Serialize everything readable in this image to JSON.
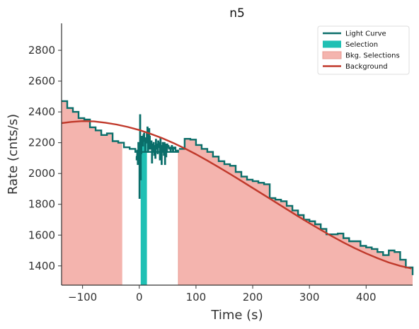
{
  "chart_data": {
    "type": "line",
    "title": "n5",
    "xlabel": "Time (s)",
    "ylabel": "Rate (cnts/s)",
    "xlim": [
      -137,
      482
    ],
    "ylim": [
      1275,
      2975
    ],
    "x_ticks": [
      -100,
      0,
      100,
      200,
      300,
      400
    ],
    "y_ticks": [
      1400,
      1600,
      1800,
      2000,
      2200,
      2400,
      2600,
      2800
    ],
    "legend_position": "top-right",
    "grid": false,
    "colors": {
      "light_curve": "#0a6e6a",
      "selection": "#20c0b4",
      "bkg_selection": "#f4b4ae",
      "background": "#c0392b"
    },
    "legend": [
      {
        "label": "Light Curve",
        "kind": "line",
        "color": "#0a6e6a"
      },
      {
        "label": "Selection",
        "kind": "patch",
        "color": "#20c0b4"
      },
      {
        "label": "Bkg. Selections",
        "kind": "patch",
        "color": "#f4b4ae"
      },
      {
        "label": "Background",
        "kind": "line",
        "color": "#c0392b"
      }
    ],
    "selection": [
      2.5,
      13.5
    ],
    "bkg_selections": [
      [
        -137,
        -30
      ],
      [
        69,
        482
      ]
    ],
    "light_curve_coarse": {
      "edges": [
        -137,
        -127,
        -117,
        -107,
        -97,
        -87,
        -77,
        -67,
        -57,
        -47,
        -37,
        -27,
        -17,
        -7,
        70,
        80,
        90,
        100,
        110,
        120,
        130,
        140,
        150,
        160,
        170,
        180,
        190,
        200,
        210,
        220,
        230,
        240,
        250,
        260,
        270,
        280,
        290,
        300,
        310,
        320,
        330,
        340,
        350,
        360,
        370,
        380,
        390,
        400,
        410,
        420,
        430,
        440,
        450,
        460,
        470,
        482
      ],
      "values": [
        2470,
        2425,
        2400,
        2360,
        2350,
        2300,
        2280,
        2250,
        2260,
        2210,
        2200,
        2170,
        2160,
        2140,
        2160,
        2225,
        2220,
        2185,
        2160,
        2140,
        2110,
        2080,
        2060,
        2050,
        2010,
        1980,
        1960,
        1950,
        1940,
        1930,
        1840,
        1830,
        1820,
        1790,
        1760,
        1730,
        1700,
        1690,
        1670,
        1640,
        1605,
        1605,
        1610,
        1580,
        1560,
        1560,
        1530,
        1520,
        1510,
        1490,
        1470,
        1500,
        1490,
        1440,
        1390,
        1340
      ]
    },
    "light_curve_fine": {
      "x": [
        -6,
        -5,
        -4,
        -3,
        -2,
        -1,
        0,
        1,
        2,
        3,
        4,
        5,
        6,
        7,
        8,
        9,
        10,
        11,
        12,
        13,
        14,
        15,
        16,
        17,
        18,
        19,
        20,
        21,
        22,
        23,
        24,
        25,
        26,
        27,
        28,
        29,
        30,
        31,
        32,
        33,
        34,
        35,
        36,
        37,
        38,
        39,
        40,
        41,
        42,
        43,
        44,
        45,
        46,
        47,
        48,
        49,
        50,
        51,
        52,
        53,
        54,
        55,
        56,
        57,
        58,
        59,
        60,
        61,
        62,
        63,
        64,
        65,
        66,
        67,
        68,
        69
      ],
      "y": [
        2110,
        2090,
        2150,
        2060,
        2200,
        2100,
        1840,
        2380,
        1960,
        2130,
        2240,
        2210,
        2180,
        2250,
        2260,
        2210,
        2150,
        2230,
        2200,
        2260,
        2300,
        2140,
        2160,
        2290,
        2240,
        2160,
        2180,
        2210,
        2070,
        2190,
        2140,
        2200,
        2120,
        2180,
        2100,
        2220,
        2160,
        2190,
        2130,
        2210,
        2200,
        2170,
        2090,
        2230,
        2180,
        2060,
        2150,
        2200,
        2170,
        2120,
        2200,
        2060,
        2190,
        2110,
        2140,
        2190,
        2170,
        2180,
        2160,
        2160,
        2170,
        2150,
        2160,
        2180,
        2170,
        2150,
        2170,
        2160,
        2160,
        2170,
        2150,
        2150,
        2150,
        2150,
        2150,
        2150
      ]
    },
    "background_curve": {
      "x": [
        -137,
        -120,
        -100,
        -80,
        -60,
        -40,
        -20,
        0,
        20,
        40,
        60,
        80,
        100,
        120,
        140,
        160,
        180,
        200,
        220,
        240,
        260,
        280,
        300,
        320,
        340,
        360,
        380,
        400,
        420,
        440,
        460,
        480
      ],
      "y": [
        2327,
        2335,
        2340,
        2338,
        2330,
        2318,
        2302,
        2282,
        2258,
        2230,
        2198,
        2163,
        2125,
        2084,
        2041,
        1997,
        1952,
        1906,
        1860,
        1814,
        1768,
        1722,
        1677,
        1634,
        1592,
        1552,
        1515,
        1481,
        1450,
        1422,
        1400,
        1383
      ]
    }
  }
}
